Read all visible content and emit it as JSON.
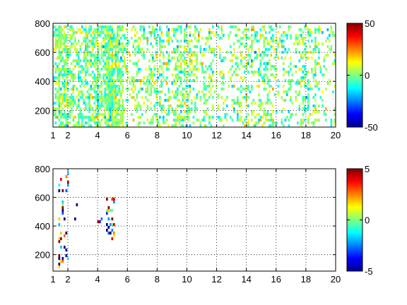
{
  "chart_data": [
    {
      "type": "heatmap",
      "title": "",
      "xlabel": "",
      "ylabel": "",
      "xlim": [
        1,
        20
      ],
      "ylim": [
        85,
        800
      ],
      "xticks": [
        1,
        2,
        4,
        6,
        8,
        10,
        12,
        14,
        16,
        18,
        20
      ],
      "yticks": [
        200,
        400,
        600,
        800
      ],
      "grid": true,
      "grid_style": "dotted",
      "colormap": "jet",
      "colorbar": {
        "min": -50,
        "max": 50,
        "ticks": [
          -50,
          0,
          50
        ]
      },
      "value_range": [
        -50,
        50
      ],
      "density_profile": [
        [
          1.0,
          0.4
        ],
        [
          1.3,
          0.72
        ],
        [
          1.7,
          0.65
        ],
        [
          2.0,
          0.8
        ],
        [
          2.3,
          0.45
        ],
        [
          3.0,
          0.5
        ],
        [
          4.0,
          0.62
        ],
        [
          4.5,
          0.85
        ],
        [
          5.0,
          0.8
        ],
        [
          5.5,
          0.5
        ],
        [
          6.0,
          0.3
        ],
        [
          7.0,
          0.25
        ],
        [
          8.5,
          0.42
        ],
        [
          9.5,
          0.38
        ],
        [
          10.0,
          0.46
        ],
        [
          11.0,
          0.28
        ],
        [
          12.0,
          0.32
        ],
        [
          13.0,
          0.28
        ],
        [
          14.0,
          0.33
        ],
        [
          15.0,
          0.3
        ],
        [
          16.0,
          0.3
        ],
        [
          17.0,
          0.28
        ],
        [
          18.0,
          0.42
        ],
        [
          18.5,
          0.36
        ],
        [
          19.0,
          0.18
        ],
        [
          20.0,
          0.12
        ]
      ]
    },
    {
      "type": "heatmap",
      "title": "",
      "xlabel": "",
      "ylabel": "",
      "xlim": [
        1,
        20
      ],
      "ylim": [
        85,
        800
      ],
      "xticks": [
        1,
        2,
        4,
        6,
        8,
        10,
        12,
        14,
        16,
        18,
        20
      ],
      "yticks": [
        200,
        400,
        600,
        800
      ],
      "grid": true,
      "grid_style": "dotted",
      "colormap": "jet",
      "colorbar": {
        "min": -5,
        "max": 5,
        "ticks": [
          -5,
          0,
          5
        ]
      },
      "value_range": [
        -5,
        5
      ],
      "clusters": [
        {
          "x": [
            1.3,
            2.1
          ],
          "y": [
            90,
            790
          ],
          "density": 0.16
        },
        {
          "x": [
            4.6,
            5.1
          ],
          "y": [
            300,
            600
          ],
          "density": 0.35
        },
        {
          "x": [
            2.4,
            2.7
          ],
          "y": [
            450,
            720
          ],
          "density": 0.08
        },
        {
          "x": [
            4.0,
            4.3
          ],
          "y": [
            410,
            460
          ],
          "density": 0.3
        }
      ]
    }
  ]
}
